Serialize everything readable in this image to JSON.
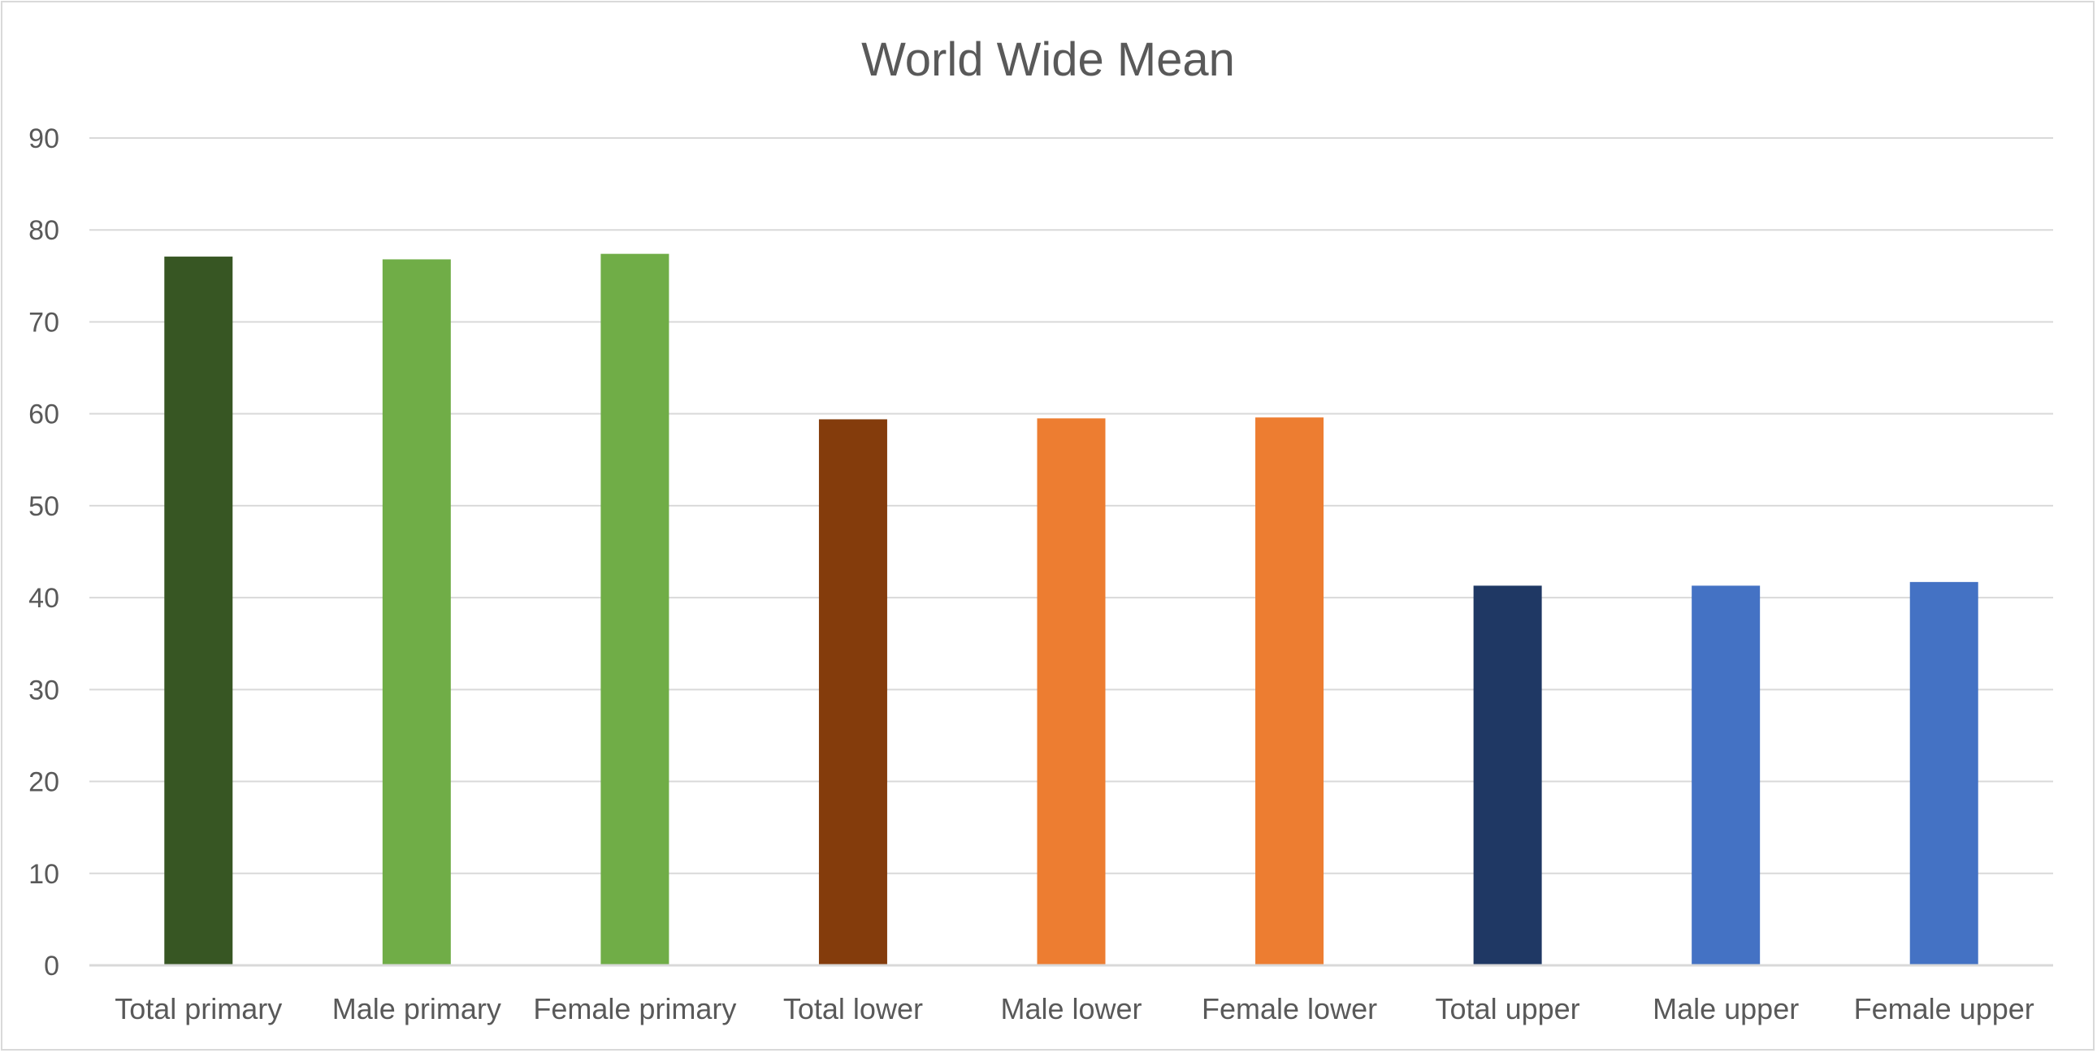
{
  "chart_data": {
    "type": "bar",
    "title": "World Wide Mean",
    "xlabel": "",
    "ylabel": "",
    "ylim": [
      0,
      90
    ],
    "yticks": [
      0,
      10,
      20,
      30,
      40,
      50,
      60,
      70,
      80,
      90
    ],
    "grid": true,
    "legend": "none",
    "categories": [
      "Total primary",
      "Male primary",
      "Female primary",
      "Total lower",
      "Male lower",
      "Female lower",
      "Total upper",
      "Male upper",
      "Female upper"
    ],
    "values": [
      77.1,
      76.8,
      77.4,
      59.4,
      59.5,
      59.6,
      41.3,
      41.3,
      41.7
    ],
    "colors": [
      "#375623",
      "#70AD47",
      "#70AD47",
      "#843C0C",
      "#ED7D31",
      "#ED7D31",
      "#1F3864",
      "#4472C4",
      "#4472C4"
    ]
  }
}
